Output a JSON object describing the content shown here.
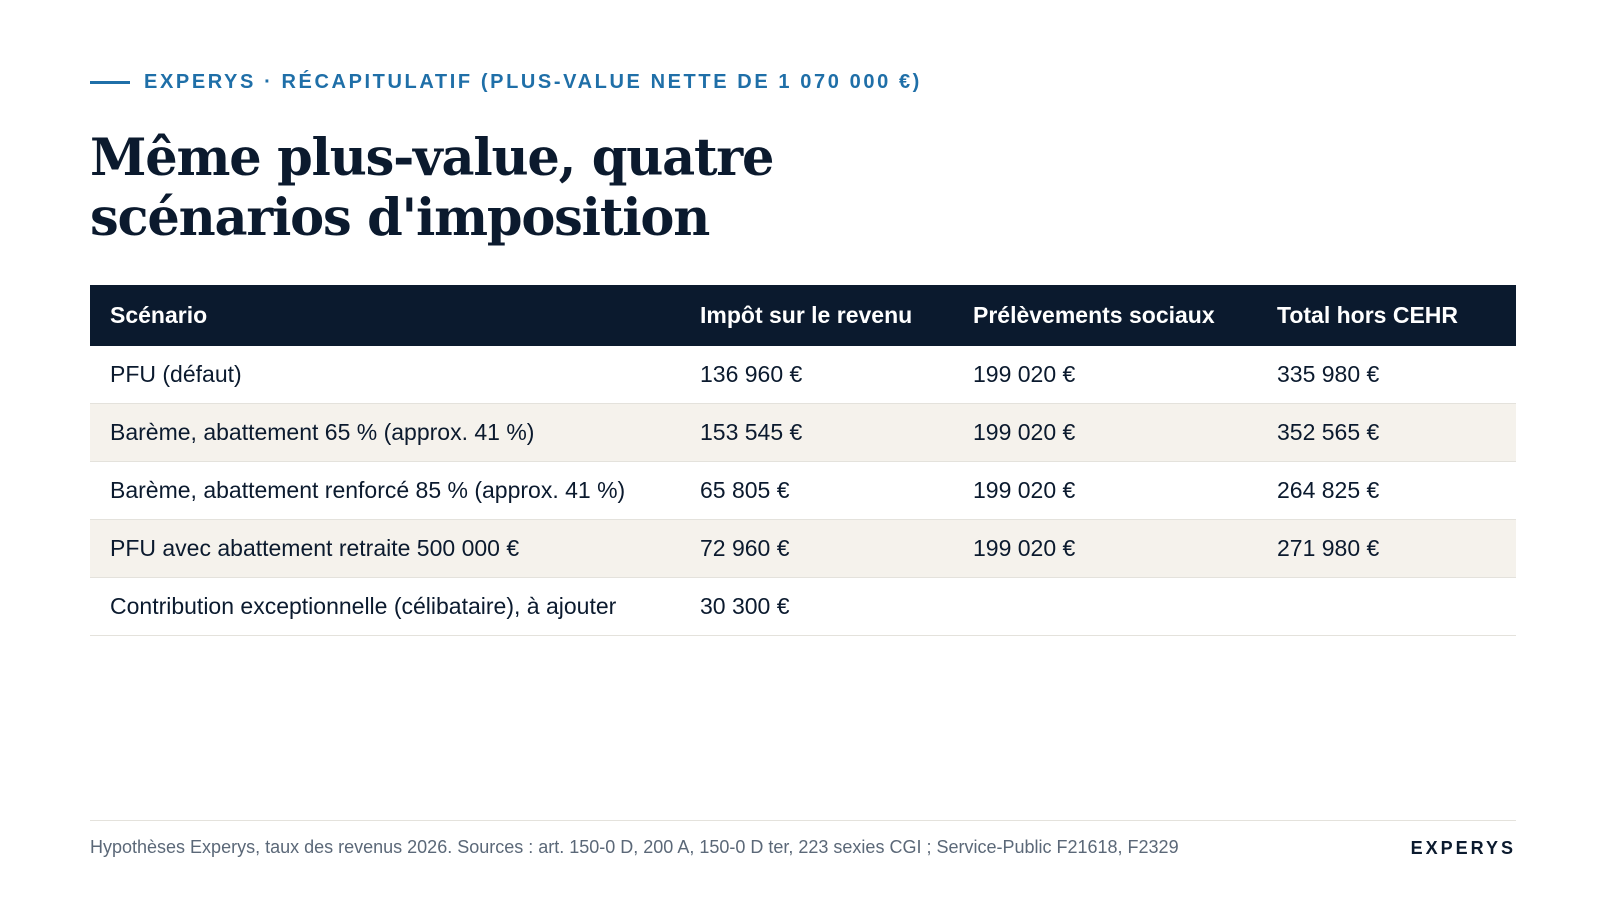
{
  "eyebrow": {
    "text": "EXPERYS · RÉCAPITULATIF (PLUS-VALUE NETTE DE 1 070 000 €)"
  },
  "title": {
    "line1": "Même plus-value, quatre",
    "line2": "scénarios d'imposition"
  },
  "table": {
    "headers": [
      "Scénario",
      "Impôt sur le revenu",
      "Prélèvements sociaux",
      "Total hors CEHR"
    ],
    "rows": [
      [
        "PFU (défaut)",
        "136 960 €",
        "199 020 €",
        "335 980 €"
      ],
      [
        "Barème, abattement 65 % (approx. 41 %)",
        "153 545 €",
        "199 020 €",
        "352 565 €"
      ],
      [
        "Barème, abattement renforcé 85 % (approx. 41 %)",
        "65 805 €",
        "199 020 €",
        "264 825 €"
      ],
      [
        "PFU avec abattement retraite 500 000 €",
        "72 960 €",
        "199 020 €",
        "271 980 €"
      ],
      [
        "Contribution exceptionnelle (célibataire), à ajouter",
        "30 300 €",
        "",
        ""
      ]
    ]
  },
  "footer": {
    "note": "Hypothèses Experys, taux des revenus 2026. Sources : art. 150-0 D, 200 A, 150-0 D ter, 223 sexies CGI ; Service-Public F21618, F2329",
    "brand": "EXPERYS"
  },
  "colors": {
    "accent": "#1f6fa8",
    "navy": "#0b1a2e",
    "row_alt": "#f5f2ec",
    "muted": "#5b6878"
  }
}
